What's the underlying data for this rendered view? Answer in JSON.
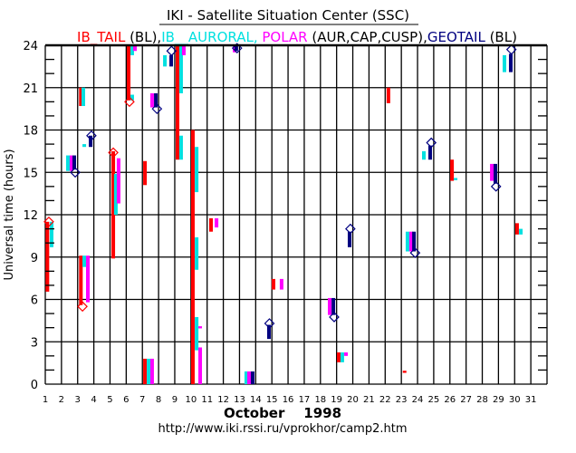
{
  "chart_data": {
    "type": "bar",
    "title": "IKI - Satellite Situation Center (SSC)",
    "legend": [
      {
        "text": "IB_TAIL",
        "color": "#ff0000"
      },
      {
        "text": " (BL),",
        "color": "#000000"
      },
      {
        "text": "IB__AURORAL,",
        "color": "#00e0e0"
      },
      {
        "text": " POLAR",
        "color": "#ff00ff"
      },
      {
        "text": " (AUR,CAP,CUSP),",
        "color": "#000000"
      },
      {
        "text": "GEOTAIL",
        "color": "#000080"
      },
      {
        "text": " (BL)",
        "color": "#000000"
      }
    ],
    "xlabel": "October    1998",
    "ylabel": "Universal time (hours)",
    "footer": "http://www.iki.rssi.ru/vprokhor/camp2.htm",
    "xlim": [
      1,
      32
    ],
    "ylim": [
      0,
      24
    ],
    "x_ticks": [
      "1",
      "2",
      "3",
      "4",
      "5",
      "6",
      "7",
      "8",
      "9",
      "10",
      "11",
      "12",
      "13",
      "14",
      "15",
      "16",
      "17",
      "18",
      "19",
      "20",
      "21",
      "22",
      "23",
      "24",
      "25",
      "26",
      "27",
      "28",
      "29",
      "30",
      "31"
    ],
    "y_ticks": [
      "0",
      "3",
      "6",
      "9",
      "12",
      "15",
      "18",
      "21",
      "24"
    ],
    "grid": true,
    "series": [
      {
        "name": "IB_TAIL",
        "color": "#ff0000",
        "segments": [
          [
            1.13,
            11.5,
            6.55
          ],
          [
            3.2,
            9.1,
            5.6
          ],
          [
            3.2,
            21.0,
            19.7
          ],
          [
            5.2,
            16.5,
            8.9
          ],
          [
            6.15,
            24.0,
            20.1
          ],
          [
            7.16,
            15.8,
            14.1
          ],
          [
            7.16,
            1.8,
            0.0
          ],
          [
            9.17,
            24.0,
            15.9
          ],
          [
            10.12,
            18.0,
            0.0
          ],
          [
            11.24,
            11.75,
            10.8
          ],
          [
            15.1,
            7.45,
            6.7
          ],
          [
            19.13,
            2.25,
            1.55
          ],
          [
            22.2,
            21.0,
            19.9
          ],
          [
            23.2,
            0.95,
            0.8
          ],
          [
            26.13,
            15.9,
            14.4
          ],
          [
            30.15,
            11.4,
            10.6
          ]
        ]
      },
      {
        "name": "IB_AURORAL",
        "color": "#00e0e0",
        "segments": [
          [
            1.39,
            11.5,
            9.7
          ],
          [
            2.4,
            16.2,
            15.1
          ],
          [
            3.35,
            21.0,
            19.7
          ],
          [
            3.41,
            9.1,
            8.3
          ],
          [
            3.41,
            17.0,
            16.8
          ],
          [
            5.36,
            14.9,
            12.0
          ],
          [
            6.37,
            24.0,
            23.3
          ],
          [
            6.37,
            20.5,
            20.1
          ],
          [
            7.38,
            1.8,
            0.0
          ],
          [
            8.39,
            23.3,
            22.5
          ],
          [
            9.39,
            24.0,
            20.6
          ],
          [
            9.39,
            17.6,
            15.9
          ],
          [
            10.35,
            16.8,
            13.6
          ],
          [
            10.35,
            10.4,
            8.1
          ],
          [
            10.35,
            4.75,
            2.4
          ],
          [
            13.42,
            0.9,
            0.0
          ],
          [
            19.35,
            2.25,
            1.55
          ],
          [
            23.38,
            10.8,
            9.4
          ],
          [
            24.39,
            16.5,
            15.9
          ],
          [
            26.35,
            14.6,
            14.45
          ],
          [
            29.37,
            23.3,
            22.1
          ],
          [
            30.38,
            11.0,
            10.6
          ]
        ]
      },
      {
        "name": "POLAR",
        "color": "#ff00ff",
        "segments": [
          [
            2.62,
            16.2,
            15.1
          ],
          [
            3.63,
            9.1,
            5.8
          ],
          [
            5.53,
            16.0,
            12.8
          ],
          [
            6.54,
            24.0,
            23.6
          ],
          [
            7.6,
            1.8,
            0.0
          ],
          [
            7.6,
            20.6,
            19.6
          ],
          [
            9.56,
            24.0,
            23.3
          ],
          [
            10.57,
            2.6,
            0.0
          ],
          [
            10.57,
            4.1,
            3.95
          ],
          [
            11.58,
            11.75,
            11.1
          ],
          [
            12.7,
            24.0,
            23.5
          ],
          [
            13.59,
            0.9,
            0.0
          ],
          [
            15.6,
            7.45,
            6.7
          ],
          [
            18.57,
            6.1,
            4.9
          ],
          [
            19.58,
            2.25,
            2.0
          ],
          [
            23.6,
            10.8,
            9.4
          ],
          [
            28.59,
            15.6,
            14.4
          ]
        ]
      },
      {
        "name": "GEOTAIL",
        "color": "#000080",
        "segments": [
          [
            2.79,
            16.2,
            15.2
          ],
          [
            3.8,
            17.6,
            16.8
          ],
          [
            7.83,
            20.6,
            19.6
          ],
          [
            8.78,
            23.3,
            22.5
          ],
          [
            12.8,
            24.0,
            23.6
          ],
          [
            13.81,
            0.9,
            0.0
          ],
          [
            14.82,
            4.2,
            3.2
          ],
          [
            18.8,
            6.1,
            4.9
          ],
          [
            19.8,
            10.8,
            9.7
          ],
          [
            23.78,
            10.8,
            9.4
          ],
          [
            24.78,
            16.9,
            15.9
          ],
          [
            28.81,
            15.6,
            14.2
          ],
          [
            29.76,
            23.4,
            22.1
          ]
        ]
      }
    ],
    "markers": [
      {
        "day": 1.22,
        "hour": 11.5,
        "color": "#ff0000"
      },
      {
        "day": 3.3,
        "hour": 5.5,
        "color": "#ff0000"
      },
      {
        "day": 5.2,
        "hour": 16.4,
        "color": "#ff0000"
      },
      {
        "day": 6.2,
        "hour": 20.0,
        "color": "#ff0000"
      },
      {
        "day": 2.85,
        "hour": 15.0,
        "color": "#000080"
      },
      {
        "day": 3.85,
        "hour": 17.6,
        "color": "#000080"
      },
      {
        "day": 7.9,
        "hour": 19.5,
        "color": "#000080"
      },
      {
        "day": 8.8,
        "hour": 23.6,
        "color": "#000080"
      },
      {
        "day": 12.85,
        "hour": 23.8,
        "color": "#000080"
      },
      {
        "day": 14.85,
        "hour": 4.3,
        "color": "#000080"
      },
      {
        "day": 18.85,
        "hour": 4.75,
        "color": "#000080"
      },
      {
        "day": 19.85,
        "hour": 11.0,
        "color": "#000080"
      },
      {
        "day": 23.85,
        "hour": 9.3,
        "color": "#000080"
      },
      {
        "day": 24.85,
        "hour": 17.1,
        "color": "#000080"
      },
      {
        "day": 28.85,
        "hour": 14.0,
        "color": "#000080"
      },
      {
        "day": 29.8,
        "hour": 23.7,
        "color": "#000080"
      }
    ]
  }
}
